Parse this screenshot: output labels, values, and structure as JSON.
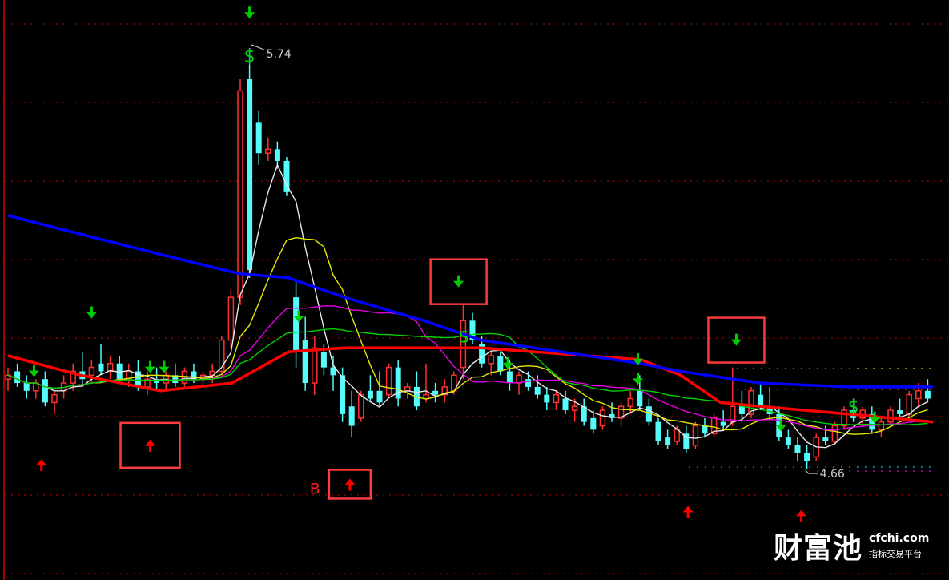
{
  "chart_data": {
    "type": "candlestick",
    "title": "",
    "ylim": [
      4.39,
      5.8
    ],
    "grid": true,
    "colors": {
      "background": "#000000",
      "up": "#ff3030",
      "down": "#54fcfc",
      "grid": "#8b0000",
      "ma5": "#e8e8e8",
      "ma10": "#e8e800",
      "ma20": "#e000e0",
      "ma30": "#00d000",
      "ma_long_red": "#ff0000",
      "ma_long_blue": "#0000ff",
      "signal_down": "#00cc00",
      "signal_up": "#ff0000",
      "box": "#ff3b3b"
    },
    "candles": [
      [
        4.89,
        4.92,
        4.86,
        4.9
      ],
      [
        4.91,
        4.93,
        4.87,
        4.88
      ],
      [
        4.88,
        4.9,
        4.84,
        4.86
      ],
      [
        4.86,
        4.89,
        4.84,
        4.88
      ],
      [
        4.89,
        4.91,
        4.82,
        4.83
      ],
      [
        4.83,
        4.86,
        4.8,
        4.85
      ],
      [
        4.86,
        4.9,
        4.84,
        4.88
      ],
      [
        4.88,
        4.93,
        4.86,
        4.91
      ],
      [
        4.91,
        4.96,
        4.87,
        4.89
      ],
      [
        4.9,
        4.94,
        4.88,
        4.92
      ],
      [
        4.93,
        4.98,
        4.9,
        4.91
      ],
      [
        4.91,
        4.95,
        4.89,
        4.93
      ],
      [
        4.93,
        4.95,
        4.88,
        4.89
      ],
      [
        4.89,
        4.93,
        4.87,
        4.91
      ],
      [
        4.91,
        4.94,
        4.86,
        4.87
      ],
      [
        4.87,
        4.91,
        4.85,
        4.89
      ],
      [
        4.89,
        4.92,
        4.86,
        4.88
      ],
      [
        4.88,
        4.91,
        4.86,
        4.9
      ],
      [
        4.9,
        4.93,
        4.87,
        4.88
      ],
      [
        4.88,
        4.92,
        4.87,
        4.91
      ],
      [
        4.91,
        4.93,
        4.88,
        4.89
      ],
      [
        4.89,
        4.91,
        4.87,
        4.9
      ],
      [
        4.9,
        4.93,
        4.88,
        4.91
      ],
      [
        4.91,
        5.0,
        4.9,
        4.99
      ],
      [
        4.99,
        5.12,
        4.97,
        5.1
      ],
      [
        5.1,
        5.66,
        5.08,
        5.63
      ],
      [
        5.66,
        5.74,
        5.15,
        5.17
      ],
      [
        5.55,
        5.58,
        5.44,
        5.47
      ],
      [
        5.47,
        5.51,
        5.45,
        5.48
      ],
      [
        5.48,
        5.5,
        5.43,
        5.45
      ],
      [
        5.45,
        5.46,
        5.36,
        5.37
      ],
      [
        5.1,
        5.14,
        4.92,
        4.96
      ],
      [
        4.99,
        5.05,
        4.86,
        4.88
      ],
      [
        4.88,
        5.0,
        4.85,
        4.97
      ],
      [
        4.96,
        4.98,
        4.9,
        4.92
      ],
      [
        4.92,
        4.95,
        4.86,
        4.9
      ],
      [
        4.9,
        4.92,
        4.78,
        4.8
      ],
      [
        4.82,
        4.86,
        4.74,
        4.77
      ],
      [
        4.79,
        4.86,
        4.78,
        4.85
      ],
      [
        4.86,
        4.9,
        4.83,
        4.84
      ],
      [
        4.86,
        4.91,
        4.82,
        4.83
      ],
      [
        4.85,
        4.93,
        4.84,
        4.92
      ],
      [
        4.92,
        4.94,
        4.82,
        4.84
      ],
      [
        4.86,
        4.88,
        4.84,
        4.87
      ],
      [
        4.87,
        4.91,
        4.81,
        4.82
      ],
      [
        4.84,
        4.93,
        4.83,
        4.85
      ],
      [
        4.86,
        4.88,
        4.83,
        4.85
      ],
      [
        4.85,
        4.89,
        4.83,
        4.87
      ],
      [
        4.86,
        4.91,
        4.85,
        4.9
      ],
      [
        4.92,
        5.08,
        4.89,
        5.04
      ],
      [
        5.04,
        5.06,
        4.98,
        4.99
      ],
      [
        4.98,
        5.0,
        4.92,
        4.93
      ],
      [
        4.93,
        4.96,
        4.9,
        4.95
      ],
      [
        4.95,
        4.96,
        4.9,
        4.91
      ],
      [
        4.91,
        4.94,
        4.86,
        4.88
      ],
      [
        4.88,
        4.91,
        4.85,
        4.9
      ],
      [
        4.89,
        4.91,
        4.86,
        4.87
      ],
      [
        4.87,
        4.9,
        4.84,
        4.85
      ],
      [
        4.85,
        4.87,
        4.81,
        4.83
      ],
      [
        4.83,
        4.86,
        4.81,
        4.85
      ],
      [
        4.84,
        4.86,
        4.8,
        4.81
      ],
      [
        4.81,
        4.84,
        4.78,
        4.82
      ],
      [
        4.82,
        4.84,
        4.77,
        4.78
      ],
      [
        4.79,
        4.81,
        4.75,
        4.76
      ],
      [
        4.77,
        4.82,
        4.76,
        4.81
      ],
      [
        4.8,
        4.83,
        4.78,
        4.79
      ],
      [
        4.79,
        4.83,
        4.77,
        4.82
      ],
      [
        4.82,
        4.86,
        4.8,
        4.84
      ],
      [
        4.86,
        4.9,
        4.81,
        4.82
      ],
      [
        4.82,
        4.84,
        4.77,
        4.78
      ],
      [
        4.78,
        4.79,
        4.72,
        4.73
      ],
      [
        4.74,
        4.76,
        4.71,
        4.72
      ],
      [
        4.73,
        4.77,
        4.72,
        4.76
      ],
      [
        4.75,
        4.77,
        4.7,
        4.71
      ],
      [
        4.72,
        4.78,
        4.71,
        4.77
      ],
      [
        4.77,
        4.79,
        4.74,
        4.75
      ],
      [
        4.75,
        4.8,
        4.74,
        4.79
      ],
      [
        4.78,
        4.81,
        4.76,
        4.77
      ],
      [
        4.78,
        4.92,
        4.77,
        4.82
      ],
      [
        4.82,
        4.86,
        4.78,
        4.8
      ],
      [
        4.8,
        4.87,
        4.79,
        4.86
      ],
      [
        4.85,
        4.88,
        4.81,
        4.82
      ],
      [
        4.82,
        4.87,
        4.79,
        4.8
      ],
      [
        4.8,
        4.82,
        4.73,
        4.74
      ],
      [
        4.74,
        4.76,
        4.71,
        4.72
      ],
      [
        4.72,
        4.74,
        4.68,
        4.7
      ],
      [
        4.7,
        4.72,
        4.66,
        4.68
      ],
      [
        4.69,
        4.75,
        4.68,
        4.74
      ],
      [
        4.74,
        4.77,
        4.72,
        4.73
      ],
      [
        4.73,
        4.78,
        4.72,
        4.77
      ],
      [
        4.77,
        4.82,
        4.76,
        4.81
      ],
      [
        4.81,
        4.84,
        4.78,
        4.79
      ],
      [
        4.79,
        4.82,
        4.77,
        4.81
      ],
      [
        4.8,
        4.82,
        4.75,
        4.76
      ],
      [
        4.76,
        4.79,
        4.74,
        4.78
      ],
      [
        4.78,
        4.82,
        4.77,
        4.81
      ],
      [
        4.81,
        4.84,
        4.79,
        4.8
      ],
      [
        4.8,
        4.86,
        4.79,
        4.85
      ],
      [
        4.84,
        4.88,
        4.82,
        4.86
      ],
      [
        4.86,
        4.89,
        4.83,
        4.84
      ]
    ],
    "moving_averages": [
      {
        "period": 5,
        "color": "#e8e8e8"
      },
      {
        "period": 10,
        "color": "#e8e800"
      },
      {
        "period": 20,
        "color": "#e000e0"
      },
      {
        "period": 30,
        "color": "#00d000"
      }
    ],
    "long_lines": [
      {
        "color": "#ff0000",
        "points": [
          [
            0,
            4.95
          ],
          [
            7.8,
            4.9
          ],
          [
            16.4,
            4.86
          ],
          [
            24.1,
            4.88
          ],
          [
            30.2,
            4.96
          ],
          [
            36.2,
            4.97
          ],
          [
            50.9,
            4.97
          ],
          [
            68.1,
            4.94
          ],
          [
            72.4,
            4.9
          ],
          [
            76.7,
            4.83
          ],
          [
            81,
            4.82
          ],
          [
            90.5,
            4.8
          ],
          [
            99.6,
            4.78
          ]
        ]
      },
      {
        "color": "#0000ff",
        "points": [
          [
            0,
            5.31
          ],
          [
            16.4,
            5.21
          ],
          [
            25,
            5.16
          ],
          [
            30.2,
            5.15
          ],
          [
            36.2,
            5.1
          ],
          [
            44.8,
            5.04
          ],
          [
            50.9,
            4.99
          ],
          [
            59.5,
            4.96
          ],
          [
            68.1,
            4.93
          ],
          [
            72.4,
            4.91
          ],
          [
            81,
            4.88
          ],
          [
            90.5,
            4.87
          ],
          [
            99.6,
            4.87
          ]
        ]
      }
    ],
    "signals_down": [
      {
        "index": 26,
        "price": 5.83
      },
      {
        "index": 9,
        "price": 5.06
      },
      {
        "index": 2.8,
        "price": 4.91
      },
      {
        "index": 15.3,
        "price": 4.92
      },
      {
        "index": 16.8,
        "price": 4.92
      },
      {
        "index": 31.3,
        "price": 5.05
      },
      {
        "index": 48.5,
        "price": 5.14,
        "boxed": true
      },
      {
        "index": 53.8,
        "price": 4.93
      },
      {
        "index": 67.8,
        "price": 4.94
      },
      {
        "index": 67.8,
        "price": 4.89
      },
      {
        "index": 78.4,
        "price": 4.99,
        "boxed": true
      },
      {
        "index": 83.2,
        "price": 4.77
      },
      {
        "index": 93.3,
        "price": 4.79
      }
    ],
    "signals_up": [
      {
        "index": 3.6,
        "price": 4.67
      },
      {
        "index": 15.3,
        "price": 4.72,
        "boxed": true
      },
      {
        "index": 36.8,
        "price": 4.62,
        "boxed": true
      },
      {
        "index": 73.2,
        "price": 4.55
      },
      {
        "index": 85.4,
        "price": 4.54
      }
    ],
    "dollar_signals": [
      {
        "index": 26,
        "price": 5.72
      },
      {
        "index": 49.1,
        "price": 5.0
      },
      {
        "index": 91,
        "price": 4.82
      }
    ],
    "dollar_symbol": "$",
    "high_label": {
      "text": "5.74",
      "index": 26,
      "price": 5.74
    },
    "low_label": {
      "text": "4.66",
      "index": 86,
      "price": 4.66
    },
    "b_label": {
      "text": "B",
      "index": 33,
      "price": 4.61
    }
  },
  "watermark": {
    "logo": "财富池",
    "url": "cfchi.com",
    "tagline": "指标交易平台"
  }
}
